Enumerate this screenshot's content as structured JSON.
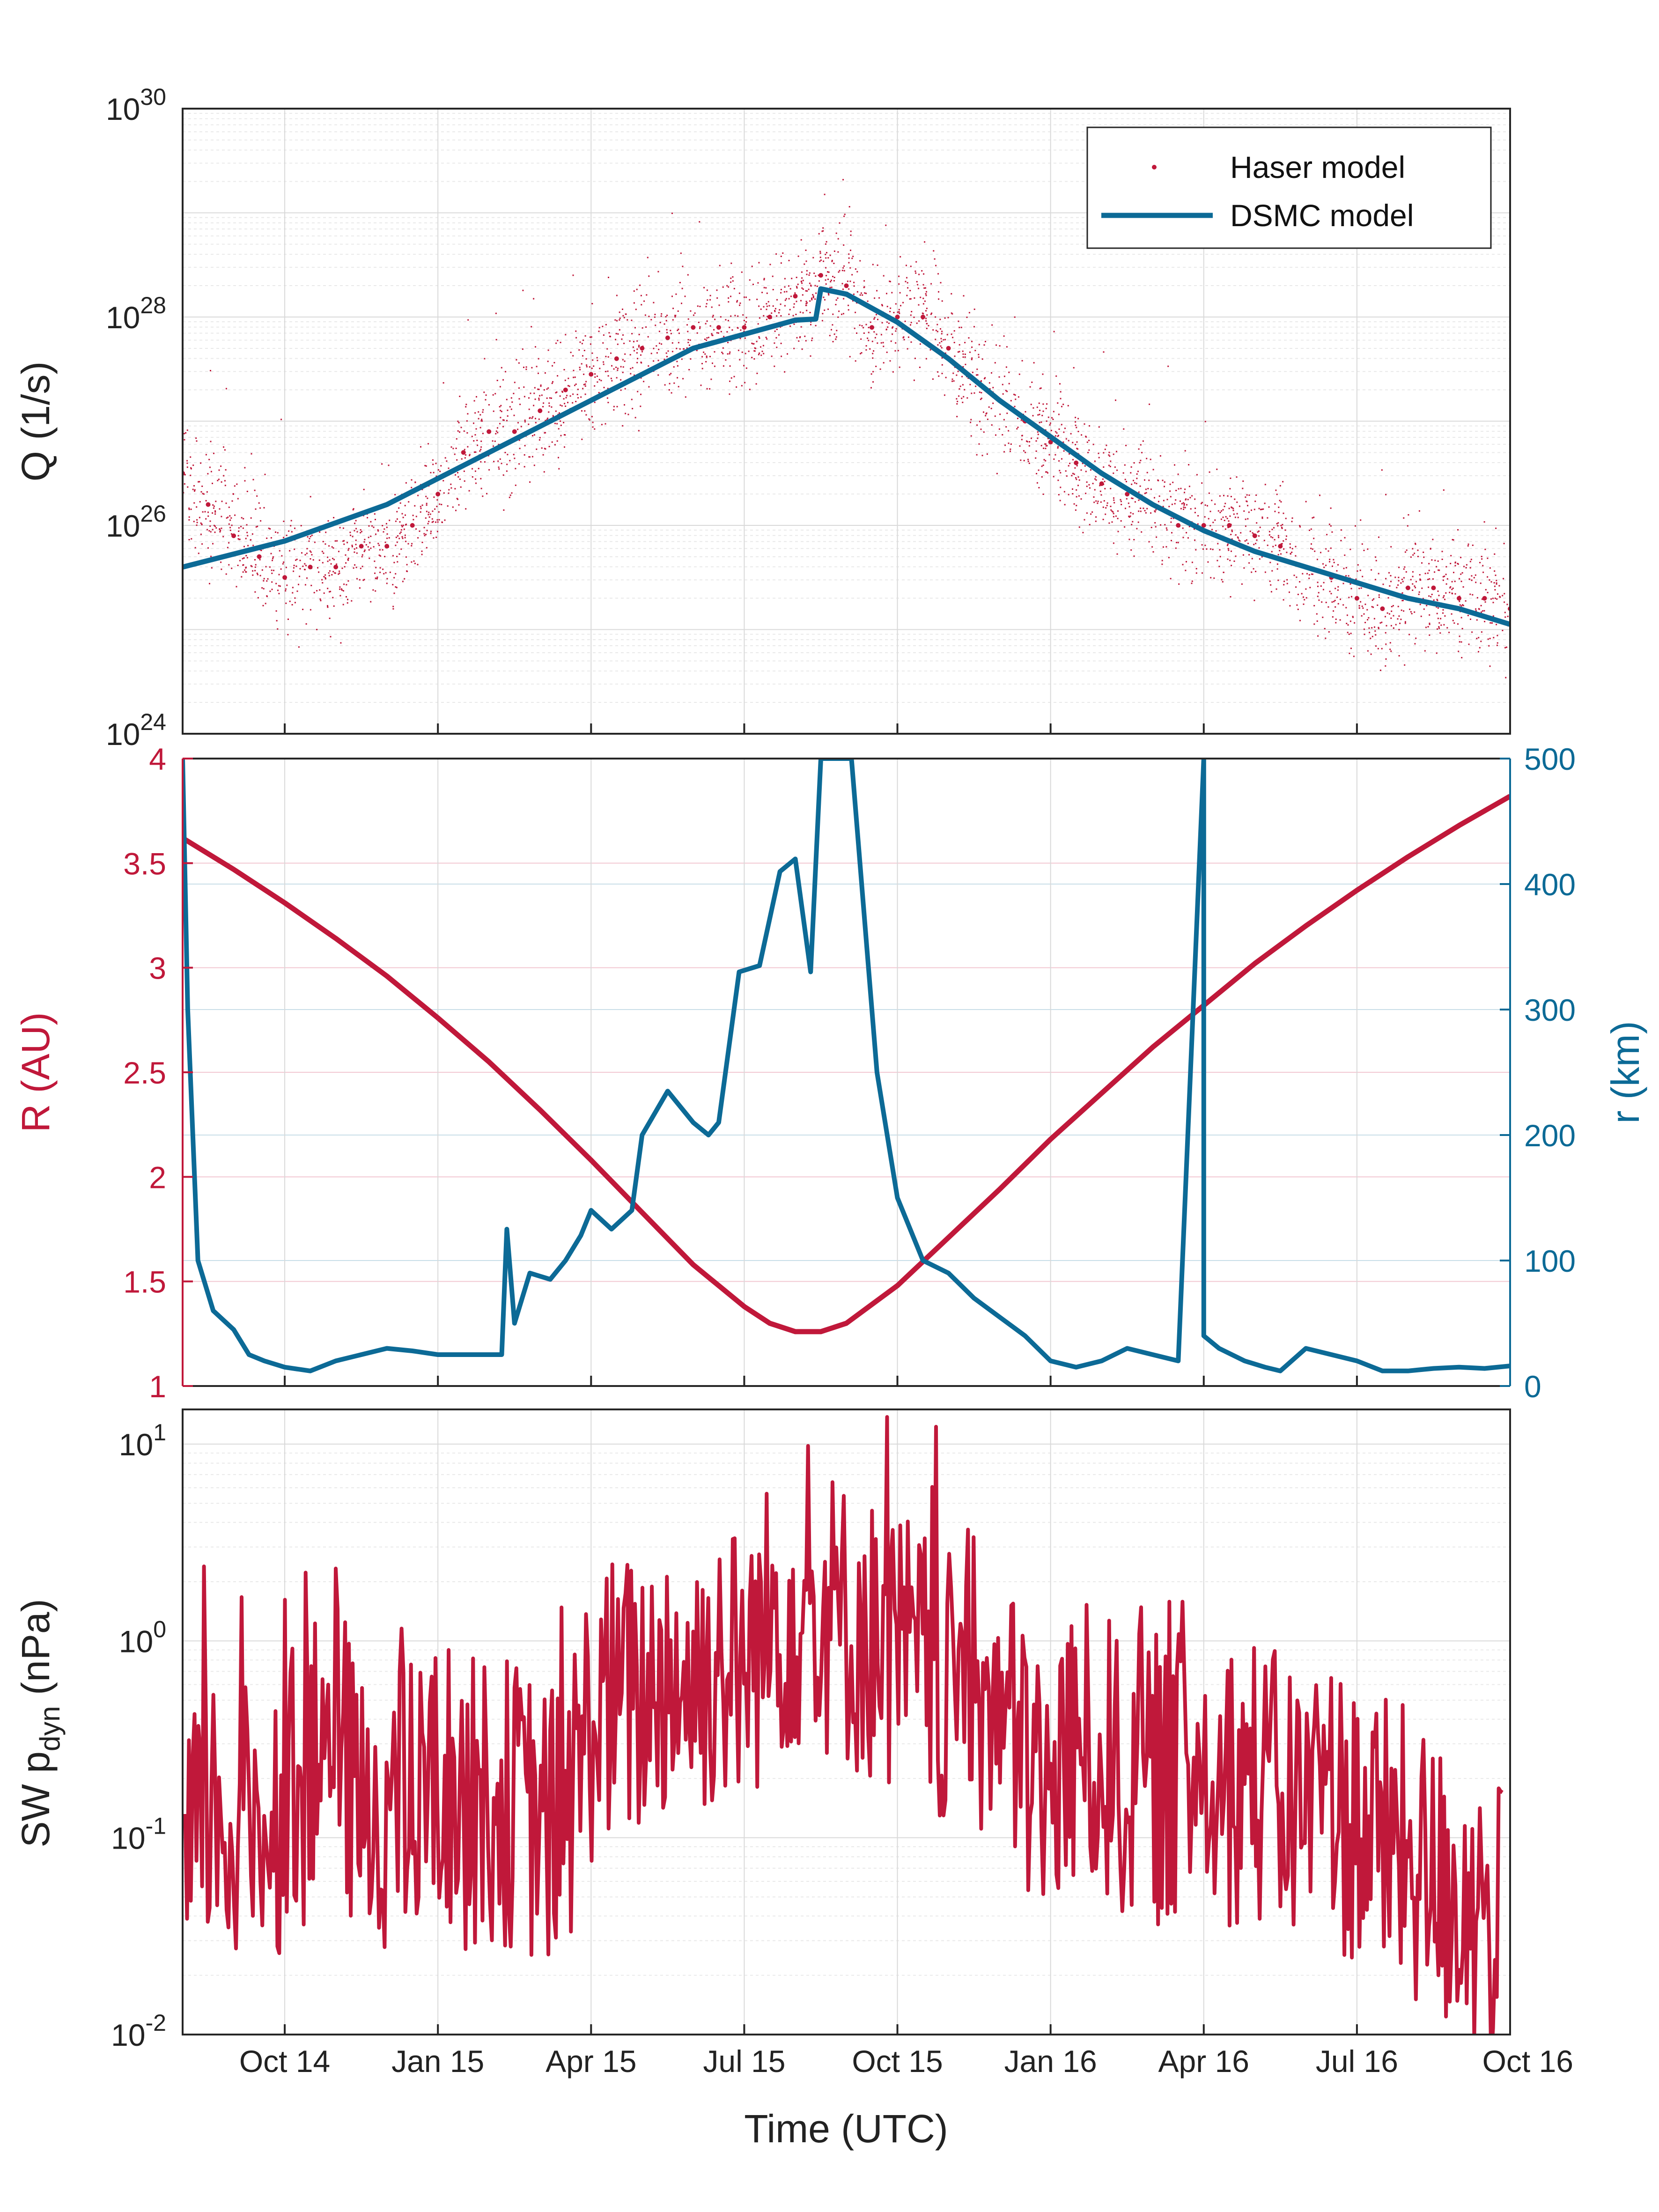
{
  "colors": {
    "red": "#C0183A",
    "blue": "#0C6A96",
    "axis": "#262626",
    "grid_major": "#D9D9D9",
    "grid_minor": "#E9E9E9"
  },
  "chart_data": [
    {
      "type": "scatter",
      "title": "",
      "xlabel": "",
      "ylabel": "Q (1/s)",
      "yscale": "log",
      "ylim": [
        1e+24,
        1e+30
      ],
      "ytick_labels": [
        "10",
        "10",
        "10",
        "10"
      ],
      "ytick_exponents": [
        "24",
        "26",
        "28",
        "30"
      ],
      "xlim_months": [
        0,
        26
      ],
      "x_ticks_months": [
        2,
        8,
        14,
        20
      ],
      "x_note": "x in months since 1 Aug 2014",
      "legend": {
        "placement": "top-right",
        "entries": [
          "Haser model",
          "DSMC model"
        ]
      },
      "series": [
        {
          "name": "DSMC model",
          "style": "line",
          "x": [
            0,
            2,
            4,
            6,
            8,
            10,
            12,
            12.4,
            12.5,
            13,
            14,
            15,
            16,
            17,
            18,
            19,
            20,
            21,
            22,
            23,
            24,
            25,
            26
          ],
          "log10_values": [
            25.6,
            25.85,
            26.2,
            26.7,
            27.2,
            27.7,
            27.97,
            27.98,
            28.27,
            28.22,
            27.95,
            27.6,
            27.2,
            26.85,
            26.5,
            26.2,
            25.95,
            25.75,
            25.6,
            25.45,
            25.3,
            25.2,
            25.05
          ]
        },
        {
          "name": "Haser model",
          "style": "points",
          "x": [
            0,
            0.5,
            1,
            1.5,
            2,
            2.5,
            3,
            3.5,
            4,
            4.5,
            5,
            5.5,
            6,
            6.5,
            7,
            7.5,
            8,
            8.5,
            9,
            9.5,
            10,
            10.5,
            11,
            11.5,
            12,
            12.5,
            13,
            13.5,
            14,
            14.5,
            15,
            15.5,
            16,
            16.5,
            17,
            17.5,
            18,
            18.5,
            19,
            19.5,
            20,
            20.5,
            21,
            21.5,
            22,
            22.5,
            23,
            23.5,
            24,
            24.5,
            25,
            25.5,
            26
          ],
          "log10_values": [
            26.5,
            26.2,
            25.9,
            25.7,
            25.5,
            25.6,
            25.6,
            25.8,
            25.8,
            26.0,
            26.3,
            26.7,
            26.9,
            26.9,
            27.1,
            27.3,
            27.45,
            27.6,
            27.7,
            27.8,
            27.9,
            27.9,
            27.9,
            28.0,
            28.2,
            28.4,
            28.3,
            27.9,
            28.0,
            28.0,
            27.7,
            27.4,
            27.2,
            27.0,
            26.8,
            26.6,
            26.4,
            26.3,
            26.2,
            26.0,
            26.0,
            26.0,
            25.9,
            25.8,
            25.6,
            25.5,
            25.3,
            25.2,
            25.4,
            25.4,
            25.3,
            25.3,
            25.2
          ]
        }
      ]
    },
    {
      "type": "line",
      "title": "",
      "xlabel": "",
      "ylabel": "R (AU)",
      "ylim": [
        1,
        4
      ],
      "yticks": [
        "1",
        "1.5",
        "2",
        "2.5",
        "3",
        "3.5",
        "4"
      ],
      "ylabel_right": "r (km)",
      "ylim_right": [
        0,
        500
      ],
      "yticks_right": [
        "0",
        "100",
        "200",
        "300",
        "400",
        "500"
      ],
      "xlim_months": [
        0,
        26
      ],
      "series": [
        {
          "name": "R (AU)",
          "axis": "left",
          "x": [
            0,
            1,
            2,
            3,
            4,
            5,
            6,
            7,
            8,
            9,
            10,
            11,
            11.5,
            12,
            12.5,
            13,
            14,
            15,
            16,
            17,
            18,
            19,
            20,
            21,
            22,
            23,
            24,
            25,
            26
          ],
          "values": [
            3.62,
            3.47,
            3.31,
            3.14,
            2.96,
            2.76,
            2.55,
            2.32,
            2.08,
            1.83,
            1.58,
            1.38,
            1.3,
            1.26,
            1.26,
            1.3,
            1.48,
            1.71,
            1.94,
            2.18,
            2.4,
            2.62,
            2.82,
            3.02,
            3.2,
            3.37,
            3.53,
            3.68,
            3.82
          ]
        },
        {
          "name": "r (km)",
          "axis": "right",
          "x": [
            0,
            0.1,
            0.3,
            0.6,
            1,
            1.3,
            1.6,
            2,
            2.5,
            3,
            3.5,
            4,
            4.5,
            5,
            5.5,
            6,
            6.25,
            6.35,
            6.5,
            6.8,
            7.2,
            7.5,
            7.8,
            8,
            8.4,
            8.8,
            9,
            9.5,
            10,
            10.3,
            10.5,
            10.9,
            11.3,
            11.7,
            12,
            12.3,
            12.5,
            12.8,
            13.1,
            13.2,
            13.6,
            14,
            14.5,
            15,
            15.5,
            16,
            16.5,
            17,
            17.5,
            18,
            18.5,
            19,
            19.5,
            20,
            20,
            20.3,
            20.8,
            21.2,
            21.5,
            22,
            22.5,
            23,
            23.5,
            24,
            24.5,
            25,
            25.5,
            26
          ],
          "values": [
            500,
            300,
            100,
            60,
            45,
            25,
            20,
            15,
            12,
            20,
            25,
            30,
            28,
            25,
            25,
            25,
            25,
            125,
            50,
            90,
            85,
            100,
            120,
            140,
            125,
            140,
            200,
            235,
            210,
            200,
            210,
            330,
            335,
            410,
            420,
            330,
            500,
            500,
            500,
            450,
            250,
            150,
            100,
            90,
            70,
            55,
            40,
            20,
            15,
            20,
            30,
            25,
            20,
            500,
            40,
            30,
            20,
            15,
            12,
            30,
            25,
            20,
            12,
            12,
            14,
            15,
            14,
            16
          ]
        }
      ]
    },
    {
      "type": "line",
      "title": "",
      "xlabel": "Time (UTC)",
      "ylabel": "SW p",
      "ylabel_sub": "dyn",
      "ylabel_tail": " (nPa)",
      "yscale": "log",
      "ylim": [
        0.01,
        15
      ],
      "ytick_labels": [
        "10",
        "10",
        "10",
        "10"
      ],
      "ytick_exponents": [
        "-2",
        "-1",
        "0",
        "1"
      ],
      "xlim_months": [
        0,
        26
      ],
      "x_tick_labels": [
        "Oct 14",
        "Jan 15",
        "Apr 15",
        "Jul 15",
        "Oct 15",
        "Jan 16",
        "Apr 16",
        "Jul 16",
        "Oct 16"
      ],
      "x_ticks_months": [
        2,
        5,
        8,
        11,
        14,
        17,
        20,
        23,
        26
      ],
      "series": [
        {
          "name": "SW pdyn",
          "x": [
            0,
            0.5,
            1,
            1.5,
            2,
            2.5,
            3,
            3.5,
            4,
            4.5,
            5,
            5.5,
            6,
            6.5,
            7,
            7.5,
            8,
            8.5,
            9,
            9.5,
            10,
            10.5,
            11,
            11.5,
            12,
            12.5,
            13,
            13.5,
            14,
            14.5,
            15,
            15.5,
            16,
            16.5,
            17,
            17.5,
            18,
            18.5,
            19,
            19.5,
            20,
            20.5,
            21,
            21.5,
            22,
            22.5,
            23,
            23.5,
            24,
            24.5,
            25,
            25.5,
            26
          ],
          "values": [
            0.03,
            0.15,
            0.1,
            0.12,
            0.15,
            0.2,
            0.3,
            0.12,
            0.15,
            0.12,
            0.2,
            0.15,
            0.15,
            0.15,
            0.12,
            0.1,
            0.4,
            0.5,
            0.5,
            0.7,
            0.6,
            0.8,
            0.7,
            1.2,
            1.5,
            1.5,
            1.2,
            1.0,
            0.9,
            0.7,
            0.5,
            0.6,
            0.4,
            0.25,
            0.15,
            0.3,
            0.25,
            0.2,
            0.2,
            0.2,
            0.25,
            0.2,
            0.2,
            0.15,
            0.15,
            0.15,
            0.12,
            0.1,
            0.08,
            0.06,
            0.05,
            0.04,
            0.03
          ]
        }
      ]
    }
  ],
  "legend": {
    "haser_label": "Haser model",
    "dsmc_label": "DSMC model"
  }
}
